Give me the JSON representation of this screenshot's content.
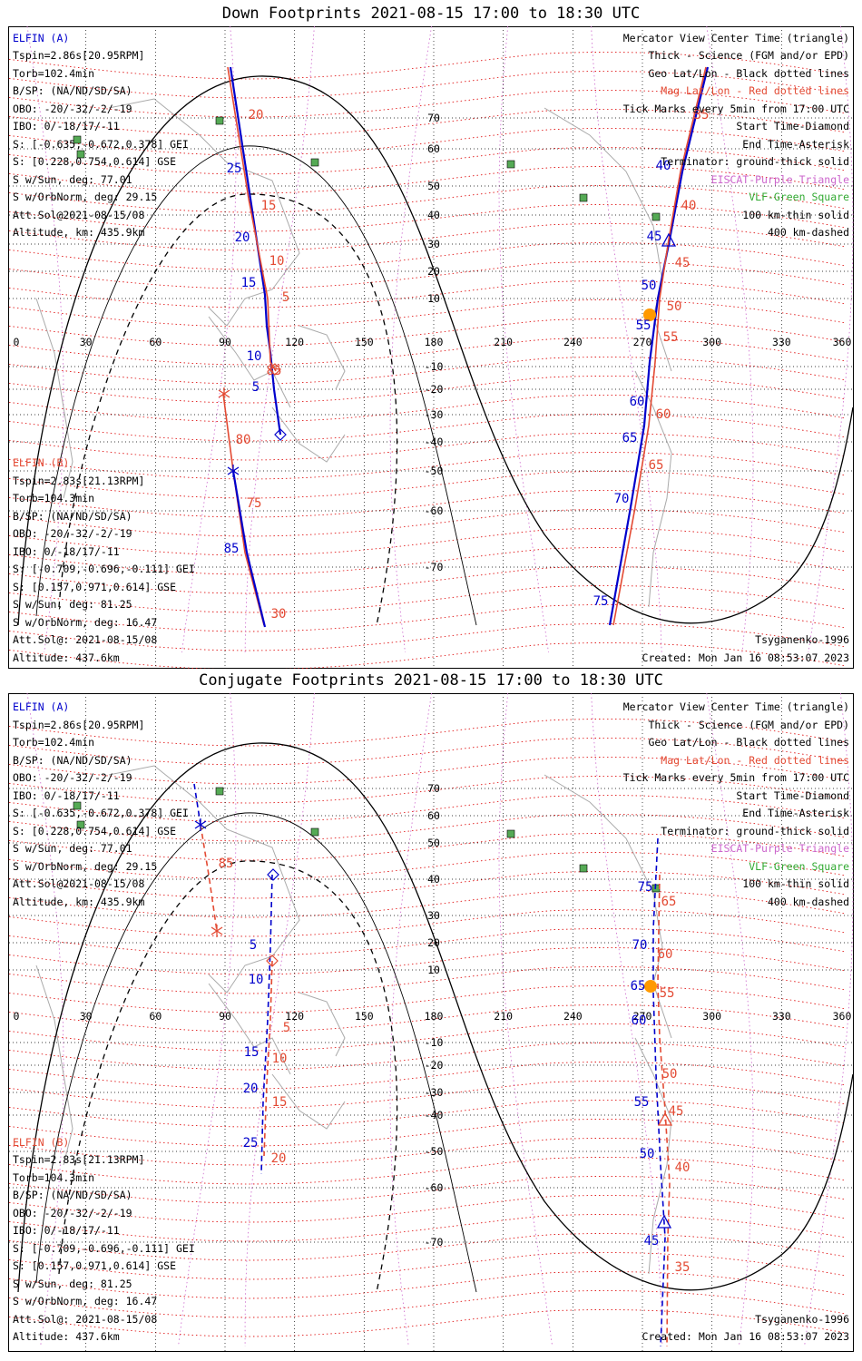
{
  "panels": [
    {
      "title": "Down Footprints 2021-08-15 17:00 to 18:30 UTC",
      "lon_ticks": [
        "0",
        "30",
        "60",
        "90",
        "120",
        "150",
        "180",
        "210",
        "240",
        "270",
        "300",
        "330",
        "360"
      ],
      "lat_ticks": [
        "70",
        "60",
        "50",
        "40",
        "30",
        "20",
        "10",
        "-10",
        "-20",
        "-30",
        "-40",
        "-50",
        "-60",
        "-70"
      ],
      "track_labels_blue": [
        "25",
        "20",
        "15",
        "10",
        "5",
        "85",
        "40",
        "45",
        "50",
        "55",
        "60",
        "65",
        "70",
        "75"
      ],
      "track_labels_red": [
        "20",
        "15",
        "10",
        "5",
        "85",
        "80",
        "75",
        "30",
        "35",
        "40",
        "45",
        "50",
        "55",
        "60",
        "65"
      ],
      "left_a": [
        "ELFIN (A)",
        "Tspin=2.86s[20.95RPM]",
        "Torb=102.4min",
        "B/SP: (NA/ND/SD/SA)",
        "OBO: -20/-32/-2/-19",
        "IBO: 0/-18/17/-11",
        "S: [-0.635,-0.672,0.378] GEI",
        "S: [0.228,0.754,0.614] GSE",
        "S w/Sun, deg: 77.01",
        "S w/OrbNorm, deg: 29.15",
        "Att.Sol@2021-08-15/08",
        "Altitude, km: 435.9km"
      ],
      "left_b": [
        "ELFIN (B)",
        "Tspin=2.83s[21.13RPM]",
        "Torb=104.3min",
        "B/SP: (NA/ND/SD/SA)",
        "OBO: -20/-32/-2/-19",
        "IBO: 0/-18/17/-11",
        "S: [-0.709,-0.696,-0.111] GEI",
        "S: [0.157,0.971,0.614] GSE",
        "S w/Sun, deg: 81.25",
        "S w/OrbNorm, deg: 16.47",
        "Att.Sol@: 2021-08-15/08",
        "Altitude: 437.6km"
      ],
      "legend": [
        "Mercator View Center Time (triangle)",
        "Thick - Science (FGM and/or EPD)",
        "Geo Lat/Lon - Black dotted lines",
        "Mag Lat/Lon - Red dotted lines",
        "Tick Marks every 5min from 17:00 UTC",
        "Start Time-Diamond",
        "End Time-Asterisk",
        "Terminator: ground-thick solid",
        "EISCAT-Purple Triangle",
        "VLF-Green Square",
        "100 km-thin solid",
        "400 km-dashed"
      ],
      "model": "Tsyganenko-1996",
      "created": "Created: Mon Jan 16 08:53:07 2023"
    },
    {
      "title": "Conjugate Footprints 2021-08-15 17:00 to 18:30 UTC",
      "lon_ticks": [
        "0",
        "30",
        "60",
        "90",
        "120",
        "150",
        "180",
        "210",
        "240",
        "270",
        "300",
        "330",
        "360"
      ],
      "lat_ticks": [
        "70",
        "60",
        "50",
        "40",
        "30",
        "20",
        "10",
        "-10",
        "-20",
        "-30",
        "-40",
        "-50",
        "-60",
        "-70"
      ],
      "track_labels_blue": [
        "5",
        "10",
        "15",
        "20",
        "25",
        "75",
        "70",
        "65",
        "60",
        "55",
        "50",
        "45"
      ],
      "track_labels_red": [
        "85",
        "5",
        "10",
        "15",
        "20",
        "65",
        "60",
        "55",
        "50",
        "45",
        "40",
        "35"
      ],
      "left_a": [
        "ELFIN (A)",
        "Tspin=2.86s[20.95RPM]",
        "Torb=102.4min",
        "B/SP: (NA/ND/SD/SA)",
        "OBO: -20/-32/-2/-19",
        "IBO: 0/-18/17/-11",
        "S: [-0.635,-0.672,0.378] GEI",
        "S: [0.228,0.754,0.614] GSE",
        "S w/Sun, deg: 77.01",
        "S w/OrbNorm, deg: 29.15",
        "Att.Sol@2021-08-15/08",
        "Altitude, km: 435.9km"
      ],
      "left_b": [
        "ELFIN (B)",
        "Tspin=2.83s[21.13RPM]",
        "Torb=104.3min",
        "B/SP: (NA/ND/SD/SA)",
        "OBO: -20/-32/-2/-19",
        "IBO: 0/-18/17/-11",
        "S: [-0.709,-0.696,-0.111] GEI",
        "S: [0.157,0.971,0.614] GSE",
        "S w/Sun, deg: 81.25",
        "S w/OrbNorm, deg: 16.47",
        "Att.Sol@: 2021-08-15/08",
        "Altitude: 437.6km"
      ],
      "legend": [
        "Mercator View Center Time (triangle)",
        "Thick - Science (FGM and/or EPD)",
        "Geo Lat/Lon - Black dotted lines",
        "Mag Lat/Lon - Red dotted lines",
        "Tick Marks every 5min from 17:00 UTC",
        "Start Time-Diamond",
        "End Time-Asterisk",
        "Terminator: ground-thick solid",
        "EISCAT-Purple Triangle",
        "VLF-Green Square",
        "100 km-thin solid",
        "400 km-dashed"
      ],
      "model": "Tsyganenko-1996",
      "created": "Created: Mon Jan 16 08:53:07 2023"
    }
  ],
  "colors": {
    "elfin_a": "#0000cc",
    "elfin_b": "#e34a33",
    "mag_grid": "#dd0000",
    "eiscat": "#cc66cc",
    "vlf": "#33aa33",
    "sun": "#ff9900",
    "coast": "#aaaaaa"
  }
}
